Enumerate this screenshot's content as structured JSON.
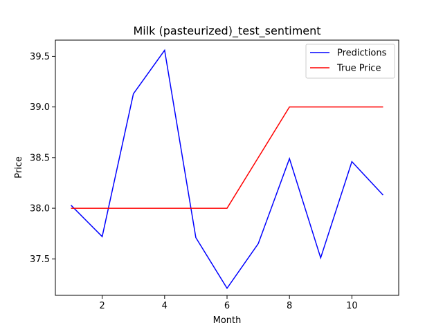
{
  "chart_data": {
    "type": "line",
    "title": "Milk (pasteurized)_test_sentiment",
    "xlabel": "Month",
    "ylabel": "Price",
    "xlim": [
      0.5,
      11.5
    ],
    "ylim": [
      37.14,
      39.66
    ],
    "xticks": [
      2,
      4,
      6,
      8,
      10
    ],
    "yticks": [
      37.5,
      38.0,
      38.5,
      39.0,
      39.5
    ],
    "ytick_labels": [
      "37.5",
      "38.0",
      "38.5",
      "39.0",
      "39.5"
    ],
    "x": [
      1,
      2,
      3,
      4,
      5,
      6,
      7,
      8,
      9,
      10,
      11
    ],
    "series": [
      {
        "name": "Predictions",
        "color": "#0000ff",
        "values": [
          38.03,
          37.72,
          39.13,
          39.56,
          37.71,
          37.21,
          37.65,
          38.49,
          37.51,
          38.46,
          38.13
        ]
      },
      {
        "name": "True Price",
        "color": "#ff0000",
        "values": [
          38.0,
          38.0,
          38.0,
          38.0,
          38.0,
          38.0,
          38.5,
          39.0,
          39.0,
          39.0,
          39.0
        ]
      }
    ],
    "legend_position": "top-right",
    "grid": false
  }
}
